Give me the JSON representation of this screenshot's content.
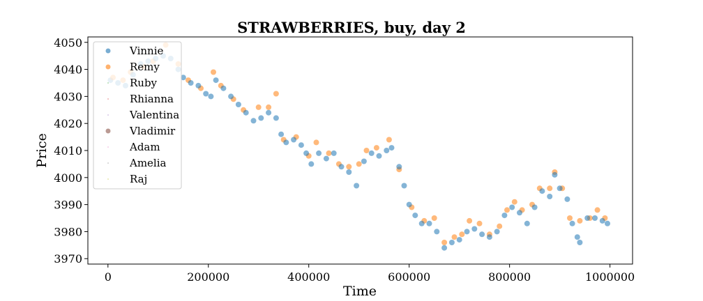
{
  "chart_data": {
    "type": "scatter",
    "title": "STRAWBERRIES, buy, day 2",
    "xlabel": "Time",
    "ylabel": "Price",
    "xlim": [
      -40000,
      1045000
    ],
    "ylim": [
      3968,
      4052
    ],
    "xticks": [
      0,
      200000,
      400000,
      600000,
      800000,
      1000000
    ],
    "yticks": [
      3970,
      3980,
      3990,
      4000,
      4010,
      4020,
      4030,
      4040,
      4050
    ],
    "grid": false,
    "legend_position": "top-left",
    "series": [
      {
        "name": "Vinnie",
        "color": "#1f77b4",
        "marker_size": "large",
        "points": [
          [
            5000,
            4036
          ],
          [
            20000,
            4035
          ],
          [
            35000,
            4034
          ],
          [
            50000,
            4038
          ],
          [
            65000,
            4042
          ],
          [
            80000,
            4043
          ],
          [
            95000,
            4044
          ],
          [
            110000,
            4045
          ],
          [
            125000,
            4044
          ],
          [
            140000,
            4040
          ],
          [
            150000,
            4037
          ],
          [
            165000,
            4035
          ],
          [
            180000,
            4034
          ],
          [
            195000,
            4031
          ],
          [
            205000,
            4030
          ],
          [
            215000,
            4036
          ],
          [
            230000,
            4033
          ],
          [
            245000,
            4030
          ],
          [
            260000,
            4027
          ],
          [
            275000,
            4024
          ],
          [
            290000,
            4021
          ],
          [
            305000,
            4022
          ],
          [
            320000,
            4024
          ],
          [
            335000,
            4022
          ],
          [
            345000,
            4016
          ],
          [
            355000,
            4013
          ],
          [
            370000,
            4014
          ],
          [
            385000,
            4012
          ],
          [
            395000,
            4009
          ],
          [
            405000,
            4005
          ],
          [
            420000,
            4009
          ],
          [
            435000,
            4007
          ],
          [
            450000,
            4009
          ],
          [
            465000,
            4004
          ],
          [
            480000,
            4002
          ],
          [
            495000,
            3997
          ],
          [
            510000,
            4006
          ],
          [
            525000,
            4009
          ],
          [
            540000,
            4008
          ],
          [
            555000,
            4010
          ],
          [
            565000,
            4011
          ],
          [
            580000,
            4004
          ],
          [
            590000,
            3997
          ],
          [
            600000,
            3990
          ],
          [
            612000,
            3986
          ],
          [
            625000,
            3983
          ],
          [
            640000,
            3983
          ],
          [
            655000,
            3980
          ],
          [
            670000,
            3974
          ],
          [
            685000,
            3976
          ],
          [
            700000,
            3977
          ],
          [
            715000,
            3980
          ],
          [
            730000,
            3981
          ],
          [
            745000,
            3979
          ],
          [
            760000,
            3978
          ],
          [
            775000,
            3980
          ],
          [
            790000,
            3986
          ],
          [
            805000,
            3989
          ],
          [
            820000,
            3987
          ],
          [
            835000,
            3983
          ],
          [
            850000,
            3989
          ],
          [
            865000,
            3995
          ],
          [
            880000,
            3993
          ],
          [
            890000,
            4001
          ],
          [
            900000,
            3996
          ],
          [
            915000,
            3992
          ],
          [
            925000,
            3983
          ],
          [
            935000,
            3978
          ],
          [
            940000,
            3976
          ],
          [
            955000,
            3985
          ],
          [
            970000,
            3985
          ],
          [
            985000,
            3984
          ],
          [
            995000,
            3983
          ]
        ]
      },
      {
        "name": "Remy",
        "color": "#ff7f0e",
        "marker_size": "large",
        "points": [
          [
            10000,
            4037
          ],
          [
            30000,
            4036
          ],
          [
            45000,
            4039
          ],
          [
            70000,
            4041
          ],
          [
            90000,
            4043
          ],
          [
            115000,
            4049
          ],
          [
            140000,
            4042
          ],
          [
            160000,
            4036
          ],
          [
            185000,
            4033
          ],
          [
            210000,
            4039
          ],
          [
            225000,
            4034
          ],
          [
            250000,
            4029
          ],
          [
            270000,
            4025
          ],
          [
            300000,
            4026
          ],
          [
            320000,
            4026
          ],
          [
            335000,
            4031
          ],
          [
            350000,
            4014
          ],
          [
            375000,
            4015
          ],
          [
            400000,
            4008
          ],
          [
            415000,
            4013
          ],
          [
            440000,
            4009
          ],
          [
            460000,
            4005
          ],
          [
            480000,
            4004
          ],
          [
            500000,
            4005
          ],
          [
            515000,
            4010
          ],
          [
            535000,
            4011
          ],
          [
            560000,
            4014
          ],
          [
            580000,
            4003
          ],
          [
            605000,
            3989
          ],
          [
            630000,
            3984
          ],
          [
            650000,
            3985
          ],
          [
            670000,
            3976
          ],
          [
            690000,
            3978
          ],
          [
            705000,
            3979
          ],
          [
            720000,
            3984
          ],
          [
            740000,
            3983
          ],
          [
            760000,
            3979
          ],
          [
            780000,
            3982
          ],
          [
            795000,
            3988
          ],
          [
            810000,
            3991
          ],
          [
            825000,
            3988
          ],
          [
            845000,
            3990
          ],
          [
            860000,
            3996
          ],
          [
            880000,
            3996
          ],
          [
            890000,
            4002
          ],
          [
            905000,
            3996
          ],
          [
            920000,
            3985
          ],
          [
            940000,
            3984
          ],
          [
            960000,
            3985
          ],
          [
            975000,
            3988
          ],
          [
            990000,
            3985
          ]
        ]
      },
      {
        "name": "Ruby",
        "color": "#2ca02c",
        "marker_size": "tiny",
        "points": []
      },
      {
        "name": "Rhianna",
        "color": "#d62728",
        "marker_size": "tiny",
        "points": []
      },
      {
        "name": "Valentina",
        "color": "#9467bd",
        "marker_size": "tiny",
        "points": []
      },
      {
        "name": "Vladimir",
        "color": "#8c564b",
        "marker_size": "large",
        "points": []
      },
      {
        "name": "Adam",
        "color": "#e377c2",
        "marker_size": "tiny",
        "points": []
      },
      {
        "name": "Amelia",
        "color": "#7f7f7f",
        "marker_size": "tiny",
        "points": []
      },
      {
        "name": "Raj",
        "color": "#bcbd22",
        "marker_size": "tiny",
        "points": []
      }
    ]
  }
}
